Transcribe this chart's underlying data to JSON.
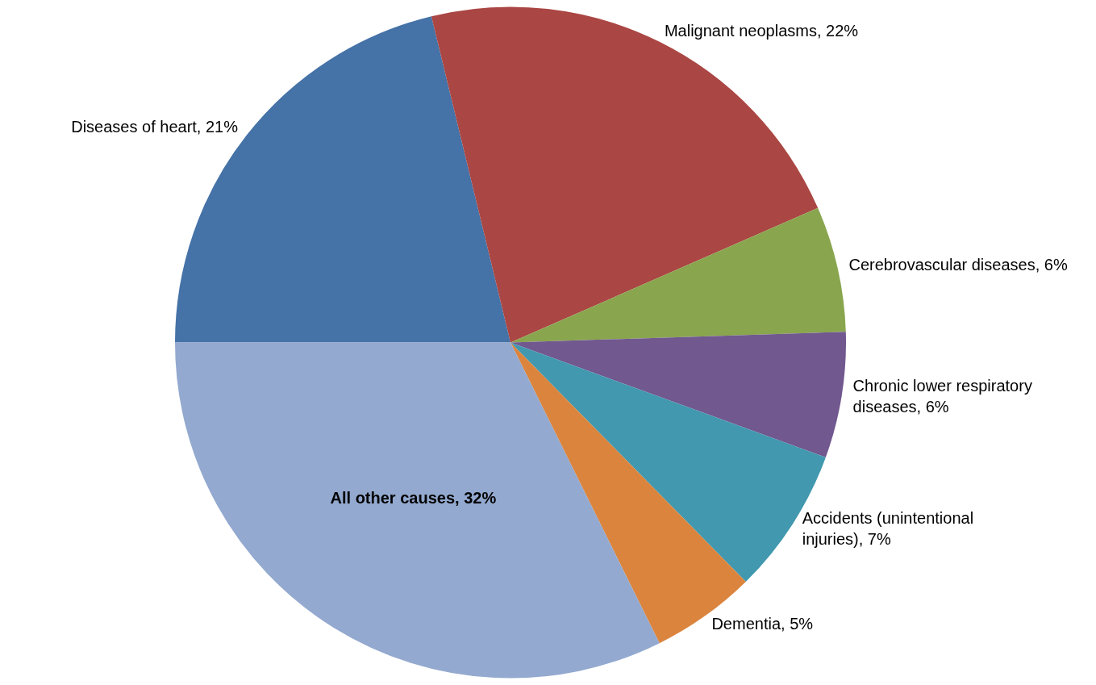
{
  "chart_data": {
    "type": "pie",
    "categories": [
      "Diseases of heart",
      "Malignant neoplasms",
      "Cerebrovascular diseases",
      "Chronic lower respiratory diseases",
      "Accidents (unintentional injuries)",
      "Dementia",
      "All other causes"
    ],
    "values": [
      21,
      22,
      6,
      6,
      7,
      5,
      32
    ],
    "value_labels": [
      "21%",
      "22%",
      "6%",
      "6%",
      "7%",
      "5%",
      "32%"
    ],
    "colors": [
      "#4572a7",
      "#aa4643",
      "#89a54e",
      "#71588f",
      "#4198af",
      "#db843d",
      "#93a9cf"
    ],
    "legend": false
  }
}
